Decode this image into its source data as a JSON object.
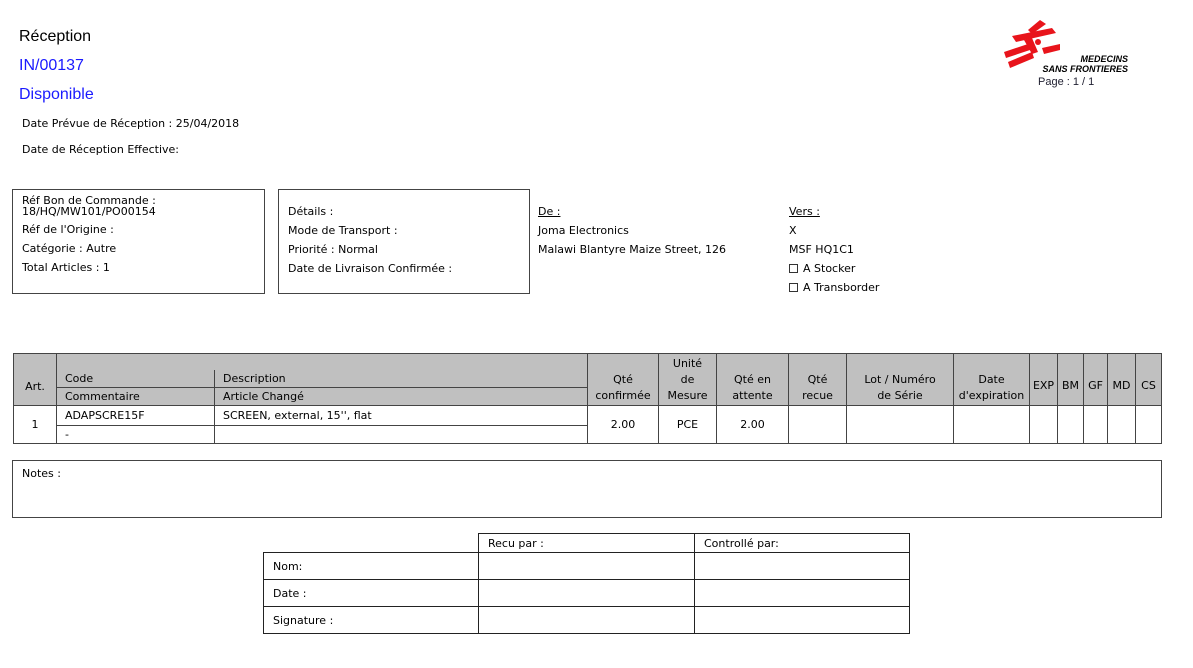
{
  "header": {
    "doc_type": "Réception",
    "reference": "IN/00137",
    "status": "Disponible",
    "expected_date": "Date Prévue de Réception : 25/04/2018",
    "actual_date": "Date de Réception Effective:",
    "logo_text": [
      "MEDECINS",
      "SANS FRONTIERES"
    ],
    "page": "Page : 1  / 1",
    "colors": {
      "accent": "#1a1aff",
      "logo": "#e8141b",
      "header_bg": "#c0c0c0"
    }
  },
  "order_box": {
    "po_label": "Réf Bon de Commande :",
    "po_value": "18/HQ/MW101/PO00154",
    "origin": "Réf de l'Origine :",
    "category": "Catégorie : Autre",
    "total": "Total Articles : 1"
  },
  "details_box": {
    "details": "Détails :",
    "transport": "Mode de Transport :",
    "priority": "Priorité : Normal",
    "delivery": "Date de Livraison Confirmée :"
  },
  "from": {
    "label": "De :",
    "name": "Joma Electronics",
    "address": "Malawi Blantyre Maize Street, 126"
  },
  "to": {
    "label": "Vers :",
    "x": "X",
    "name": "MSF HQ1C1",
    "opt1": "A Stocker",
    "opt2": "A Transborder"
  },
  "table": {
    "headers": {
      "art": "Art.",
      "code": "Code",
      "comment": "Commentaire",
      "description": "Description",
      "changed": "Article Changé",
      "qty_confirmed": "Qté confirmée",
      "uom": "Unité de Mesure",
      "qty_pending": "Qté en attente",
      "qty_received": "Qté recue",
      "lot": "Lot / Numéro de Série",
      "expiry": "Date d'expiration",
      "exp": "EXP",
      "bm": "BM",
      "gf": "GF",
      "md": "MD",
      "cs": "CS"
    },
    "rows": [
      {
        "art": "1",
        "code": "ADAPSCRE15F",
        "comment": "-",
        "description": "SCREEN, external, 15'', flat",
        "changed": "",
        "qty_confirmed": "2.00",
        "uom": "PCE",
        "qty_pending": "2.00"
      }
    ]
  },
  "notes": {
    "label": "Notes :"
  },
  "signature": {
    "received_by": "Recu par :",
    "controlled_by": "Controllé par:",
    "rows": [
      "Nom:",
      "Date :",
      "Signature :"
    ]
  }
}
